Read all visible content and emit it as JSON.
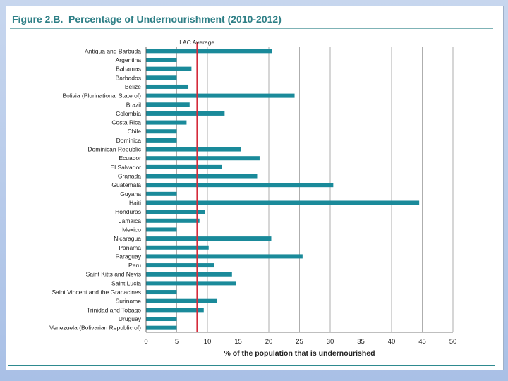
{
  "figure": {
    "label": "Figure 2.B.",
    "title": "Percentage of Undernourishment (2010-2012)"
  },
  "chart_data": {
    "type": "bar",
    "orientation": "horizontal",
    "xlabel": "% of the population that is undernourished",
    "xlim": [
      0,
      50
    ],
    "xticks": [
      0,
      5,
      10,
      15,
      20,
      25,
      30,
      35,
      40,
      45,
      50
    ],
    "grid": true,
    "bar_color": "#1a8a9a",
    "reference_line": {
      "label": "LAC Average",
      "value": 8.3,
      "color": "#d42a3a"
    },
    "categories": [
      "Antigua and Barbuda",
      "Argentina",
      "Bahamas",
      "Barbados",
      "Belize",
      "Bolivia (Plurinational State of)",
      "Brazil",
      "Colombia",
      "Costa Rica",
      "Chile",
      "Dominica",
      "Dominican Republic",
      "Ecuador",
      "El Salvador",
      "Granada",
      "Guatemala",
      "Guyana",
      "Haiti",
      "Honduras",
      "Jamaica",
      "Mexico",
      "Nicaragua",
      "Panama",
      "Paraguay",
      "Peru",
      "Saint Kitts and Nevis",
      "Saint Lucia",
      "Saint Vincent and the Granacines",
      "Suriname",
      "Trinidad and Tobago",
      "Uruguay",
      "Venezuela (Bolivarian Republic of)"
    ],
    "values": [
      20.5,
      5.0,
      7.4,
      5.0,
      6.9,
      24.2,
      7.1,
      12.8,
      6.6,
      5.0,
      5.0,
      15.5,
      18.5,
      12.4,
      18.1,
      30.5,
      5.0,
      44.5,
      9.6,
      8.7,
      5.0,
      20.4,
      10.2,
      25.5,
      11.1,
      14.0,
      14.6,
      5.0,
      11.5,
      9.4,
      5.0,
      5.0
    ]
  }
}
